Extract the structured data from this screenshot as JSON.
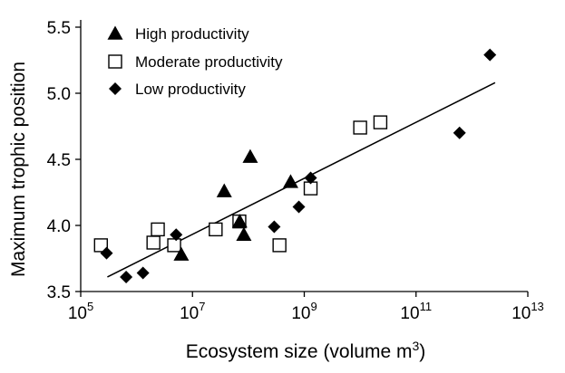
{
  "chart_data": {
    "type": "scatter",
    "title": "",
    "xlabel": "Ecosystem size (volume m",
    "xlabel_superscript": "3",
    "xlabel_suffix": ")",
    "ylabel": "Maximum trophic position",
    "x_scale": "log10",
    "xlim": [
      100000.0,
      10000000000000.0
    ],
    "ylim": [
      3.5,
      5.5
    ],
    "x_ticks": [
      {
        "value": 100000.0,
        "base": "10",
        "exp": "5"
      },
      {
        "value": 10000000.0,
        "base": "10",
        "exp": "7"
      },
      {
        "value": 1000000000.0,
        "base": "10",
        "exp": "9"
      },
      {
        "value": 100000000000.0,
        "base": "10",
        "exp": "11"
      },
      {
        "value": 10000000000000.0,
        "base": "10",
        "exp": "13"
      }
    ],
    "y_ticks": [
      "3.5",
      "4.0",
      "4.5",
      "5.0",
      "5.5"
    ],
    "grid": false,
    "legend_position": "top-left",
    "series": [
      {
        "name": "High productivity",
        "marker": "triangle-filled",
        "color": "#000000",
        "points": [
          {
            "x": 6300000.0,
            "y": 3.78
          },
          {
            "x": 37000000.0,
            "y": 4.26
          },
          {
            "x": 70000000.0,
            "y": 4.03
          },
          {
            "x": 83000000.0,
            "y": 3.93
          },
          {
            "x": 108000000.0,
            "y": 4.52
          },
          {
            "x": 570000000.0,
            "y": 4.33
          }
        ]
      },
      {
        "name": "Moderate productivity",
        "marker": "square-open",
        "color": "#000000",
        "points": [
          {
            "x": 230000.0,
            "y": 3.85
          },
          {
            "x": 2000000.0,
            "y": 3.87
          },
          {
            "x": 2400000.0,
            "y": 3.97
          },
          {
            "x": 4700000.0,
            "y": 3.85
          },
          {
            "x": 26000000.0,
            "y": 3.97
          },
          {
            "x": 69000000.0,
            "y": 4.03
          },
          {
            "x": 360000000.0,
            "y": 3.85
          },
          {
            "x": 1300000000.0,
            "y": 4.28
          },
          {
            "x": 10000000000.0,
            "y": 4.74
          },
          {
            "x": 23000000000.0,
            "y": 4.78
          }
        ]
      },
      {
        "name": "Low productivity",
        "marker": "diamond-filled",
        "color": "#000000",
        "points": [
          {
            "x": 290000.0,
            "y": 3.79
          },
          {
            "x": 650000.0,
            "y": 3.61
          },
          {
            "x": 1300000.0,
            "y": 3.64
          },
          {
            "x": 5100000.0,
            "y": 3.93
          },
          {
            "x": 290000000.0,
            "y": 3.99
          },
          {
            "x": 800000000.0,
            "y": 4.14
          },
          {
            "x": 1300000000.0,
            "y": 4.36
          },
          {
            "x": 600000000000.0,
            "y": 4.7
          },
          {
            "x": 2100000000000.0,
            "y": 5.29
          }
        ]
      }
    ],
    "fit_line": {
      "x": [
        300000.0,
        2600000000000.0
      ],
      "y": [
        3.61,
        5.08
      ]
    }
  }
}
